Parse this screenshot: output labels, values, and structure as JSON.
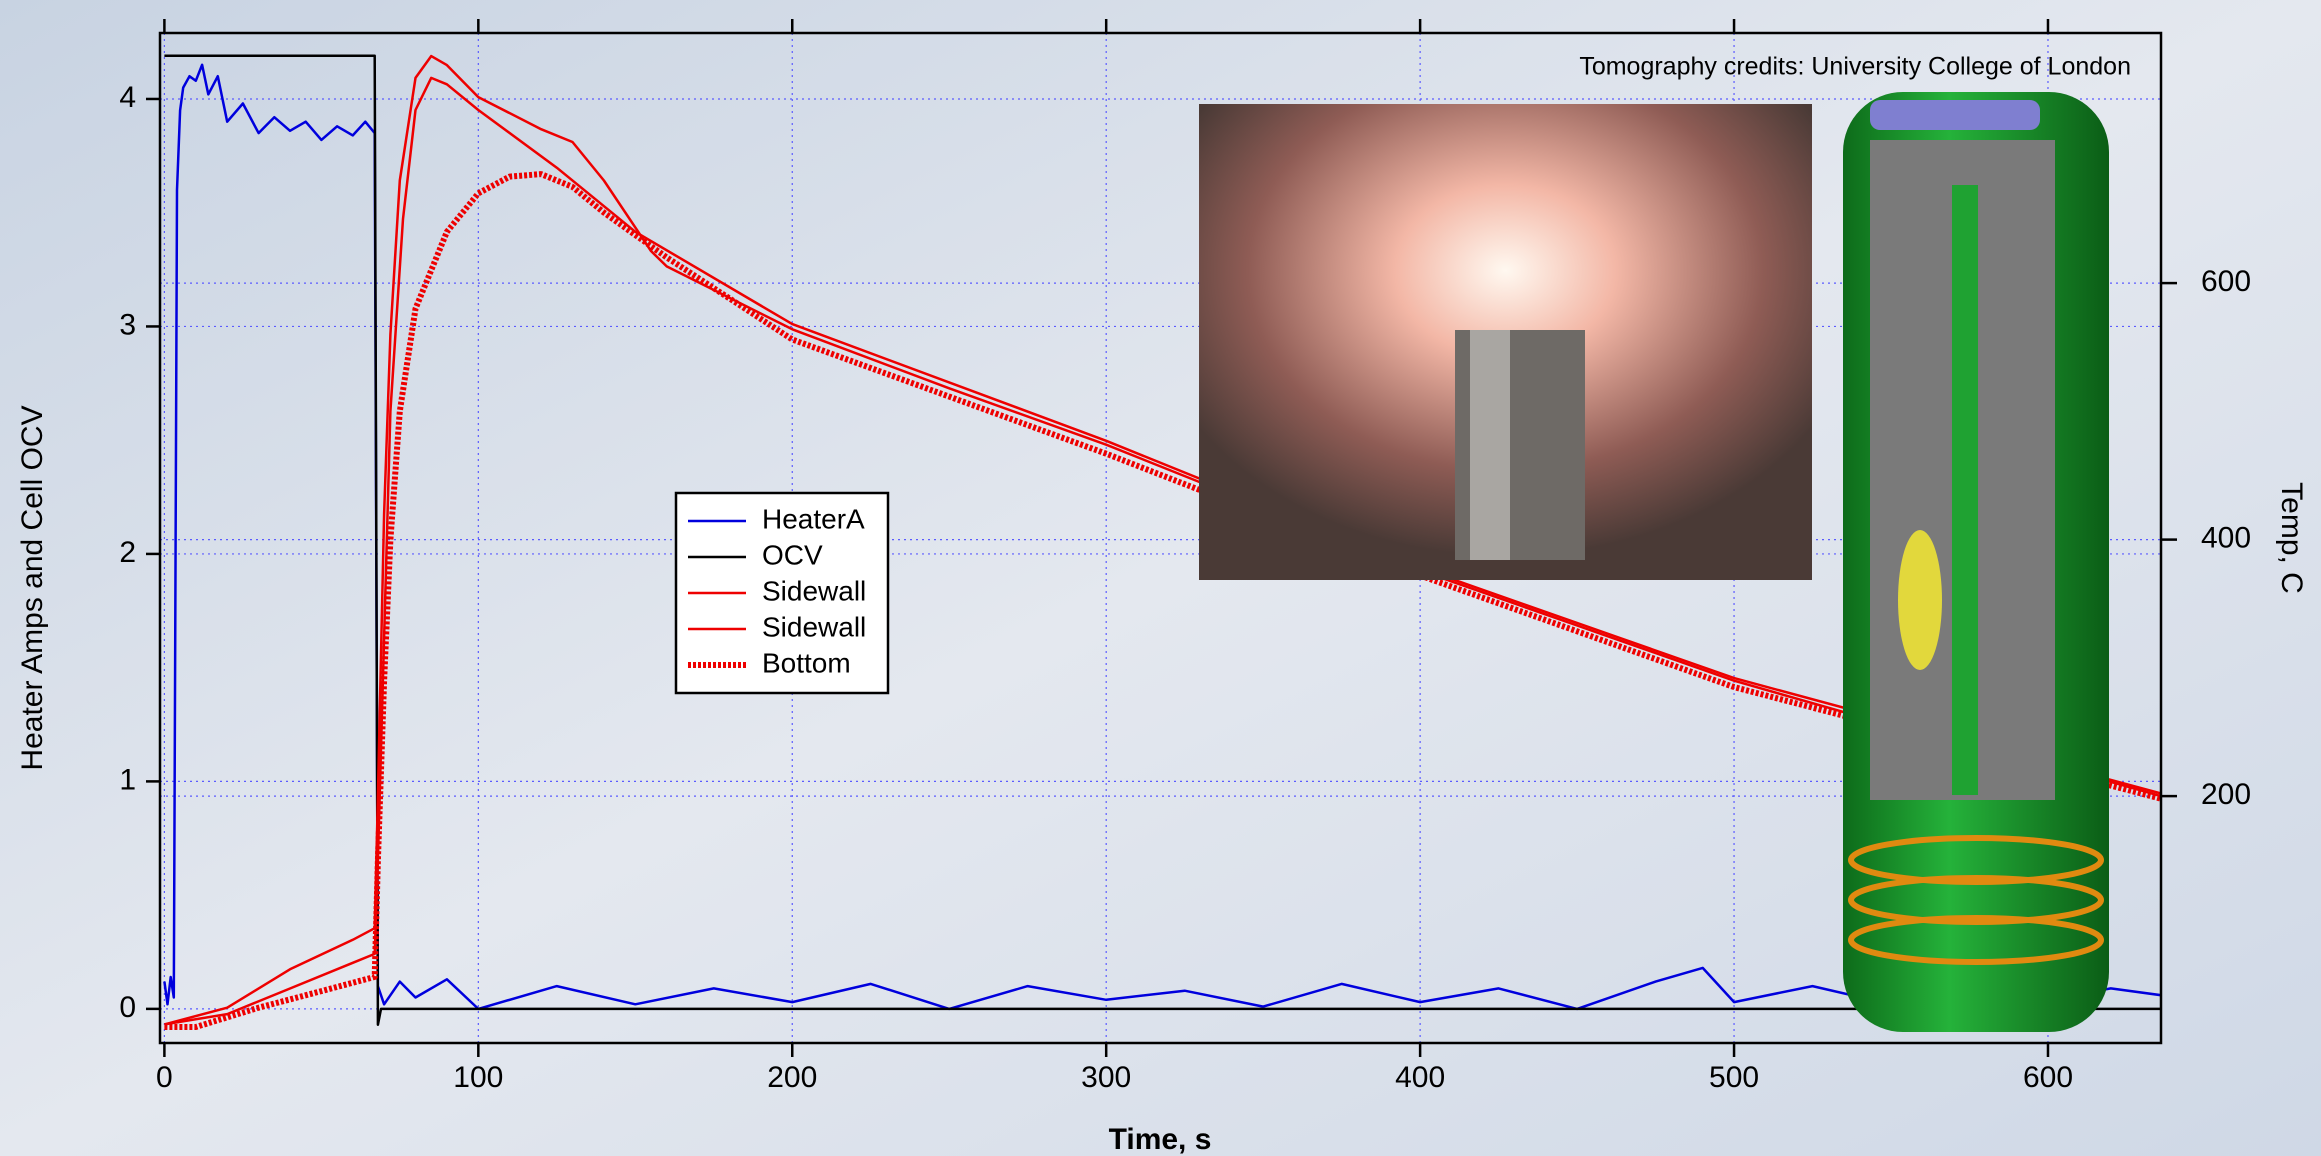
{
  "chart_data": {
    "type": "line",
    "x_label": "Time, s",
    "y_label": "Heater Amps and Cell OCV",
    "y2_label": "Temp, C",
    "annotation": "Tomography credits: University College of London",
    "xlim": [
      -1.4,
      636
    ],
    "ylim": [
      -0.15,
      4.29
    ],
    "y2lim": [
      7.5,
      795
    ],
    "xticks": [
      0,
      100,
      200,
      300,
      400,
      500,
      600
    ],
    "yticks": [
      0,
      1,
      2,
      3,
      4
    ],
    "y2ticks": [
      200,
      400,
      600
    ],
    "grid": true,
    "legend": "center",
    "series": [
      {
        "name": "HeaterA",
        "color": "#0000dd",
        "style": "solid",
        "x": [
          0,
          1,
          2,
          3,
          4,
          5,
          6,
          8,
          10,
          12,
          14,
          17,
          20,
          25,
          30,
          35,
          40,
          45,
          50,
          55,
          60,
          64,
          67,
          68,
          70,
          75,
          80,
          90,
          100,
          125,
          150,
          175,
          200,
          225,
          250,
          275,
          300,
          325,
          350,
          375,
          400,
          425,
          450,
          475,
          490,
          500,
          525,
          550,
          575,
          600,
          620,
          636
        ],
        "values": [
          0.12,
          0.02,
          0.14,
          0.05,
          3.6,
          3.95,
          4.05,
          4.1,
          4.08,
          4.15,
          4.02,
          4.1,
          3.9,
          3.98,
          3.85,
          3.92,
          3.86,
          3.9,
          3.82,
          3.88,
          3.84,
          3.9,
          3.85,
          0.1,
          0.02,
          0.12,
          0.05,
          0.13,
          0.0,
          0.1,
          0.02,
          0.09,
          0.03,
          0.11,
          0.0,
          0.1,
          0.04,
          0.08,
          0.01,
          0.11,
          0.03,
          0.09,
          0.0,
          0.12,
          0.18,
          0.03,
          0.1,
          0.02,
          0.12,
          0.04,
          0.09,
          0.06
        ]
      },
      {
        "name": "OCV",
        "color": "#000000",
        "style": "solid",
        "x": [
          0,
          67,
          67.5,
          68,
          69,
          636
        ],
        "values": [
          4.19,
          4.19,
          2.1,
          -0.07,
          0.0,
          0.0
        ]
      },
      {
        "name": "Sidewall",
        "color": "#ee0000",
        "style": "solid",
        "axis": "y2",
        "x": [
          0,
          20,
          40,
          60,
          67,
          68,
          70,
          72,
          75,
          80,
          85,
          90,
          100,
          120,
          130,
          140,
          155,
          160,
          200,
          250,
          300,
          350,
          400,
          450,
          500,
          550,
          600,
          636
        ],
        "values": [
          22,
          35,
          65,
          88,
          97,
          200,
          420,
          560,
          680,
          760,
          777,
          770,
          745,
          720,
          710,
          680,
          625,
          613,
          564,
          518,
          474,
          425,
          376,
          333,
          290,
          255,
          225,
          200
        ]
      },
      {
        "name": "Sidewall",
        "color": "#ee0000",
        "style": "solid",
        "axis": "y2",
        "x": [
          0,
          20,
          40,
          60,
          67,
          68,
          72,
          76,
          80,
          85,
          90,
          100,
          125,
          150,
          200,
          300,
          400,
          500,
          636
        ],
        "values": [
          22,
          30,
          50,
          70,
          77,
          150,
          500,
          650,
          735,
          760,
          755,
          735,
          690,
          640,
          568,
          477,
          378,
          292,
          202
        ]
      },
      {
        "name": "Bottom",
        "color": "#ee0000",
        "style": "dotted",
        "axis": "y2",
        "x": [
          0,
          10,
          30,
          50,
          67,
          68,
          70,
          72,
          75,
          80,
          90,
          100,
          110,
          120,
          130,
          140,
          160,
          200,
          300,
          400,
          500,
          636
        ],
        "values": [
          20,
          20,
          35,
          48,
          59,
          150,
          290,
          400,
          500,
          580,
          640,
          670,
          683,
          685,
          675,
          655,
          620,
          556,
          467,
          372,
          285,
          198
        ]
      }
    ]
  }
}
